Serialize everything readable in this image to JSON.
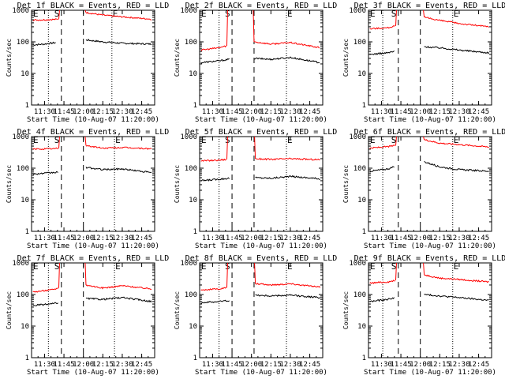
{
  "figure": {
    "ylabel": "Counts/sec",
    "xlabel": "Start Time (10-Aug-07 11:20:00)",
    "xticks": [
      "11:30",
      "11:45",
      "12:00",
      "12:15",
      "12:30",
      "12:45"
    ],
    "yticks": [
      "1",
      "10",
      "100",
      "1000"
    ],
    "markers": {
      "start": "E",
      "middle": "S",
      "end": "E"
    },
    "colors": {
      "events": "#000000",
      "lld": "#ff0000"
    }
  },
  "chart_data": [
    {
      "type": "line",
      "title": "Det 1f BLACK = Events, RED = LLD",
      "xlabel": "Start Time (10-Aug-07 11:20:00)",
      "ylabel": "Counts/sec",
      "yscale": "log",
      "ylim": [
        1,
        1000
      ],
      "xlim_minutes": [
        "11:20",
        "12:55"
      ],
      "series": [
        {
          "name": "Events",
          "color": "black",
          "pre": {
            "x": [
              "11:21",
              "11:30",
              "11:39"
            ],
            "values": [
              80,
              85,
              95
            ]
          },
          "post": {
            "x": [
              "12:02",
              "12:15",
              "12:30",
              "12:53"
            ],
            "values": [
              115,
              100,
              90,
              85
            ]
          }
        },
        {
          "name": "LLD",
          "color": "red",
          "pre": {
            "x": [
              "11:21",
              "11:30",
              "11:41"
            ],
            "values": [
              490,
              500,
              520
            ]
          },
          "post": {
            "x": [
              "12:02",
              "12:15",
              "12:30",
              "12:53"
            ],
            "values": [
              850,
              700,
              620,
              520
            ]
          }
        }
      ],
      "vlines": {
        "dotted": [
          "11:33",
          "12:22"
        ],
        "dashed": [
          "11:43",
          "12:00"
        ]
      }
    },
    {
      "type": "line",
      "title": "Det 2f BLACK = Events, RED = LLD",
      "xlabel": "Start Time (10-Aug-07 11:20:00)",
      "ylabel": "Counts/sec",
      "yscale": "log",
      "ylim": [
        1,
        1000
      ],
      "series": [
        {
          "name": "Events",
          "color": "black",
          "pre": {
            "x": [
              "11:21",
              "11:35",
              "11:43"
            ],
            "values": [
              22,
              25,
              28
            ]
          },
          "post": {
            "x": [
              "12:02",
              "12:15",
              "12:30",
              "12:53"
            ],
            "values": [
              30,
              28,
              32,
              22
            ]
          }
        },
        {
          "name": "LLD",
          "color": "red",
          "pre": {
            "x": [
              "11:21",
              "11:35",
              "11:41"
            ],
            "values": [
              55,
              65,
              75
            ]
          },
          "post": {
            "x": [
              "12:02",
              "12:15",
              "12:30",
              "12:53"
            ],
            "values": [
              100,
              85,
              95,
              65
            ]
          }
        }
      ],
      "vlines": {
        "dotted": [
          "11:35",
          "12:27"
        ],
        "dashed": [
          "11:45",
          "12:02"
        ]
      }
    },
    {
      "type": "line",
      "title": "Det 3f BLACK = Events, RED = LLD",
      "xlabel": "Start Time (10-Aug-07 11:20:00)",
      "ylabel": "Counts/sec",
      "yscale": "log",
      "ylim": [
        1,
        1000
      ],
      "series": [
        {
          "name": "Events",
          "color": "black",
          "pre": {
            "x": [
              "11:21",
              "11:35",
              "11:40"
            ],
            "values": [
              40,
              45,
              50
            ]
          },
          "post": {
            "x": [
              "12:03",
              "12:15",
              "12:30",
              "12:53"
            ],
            "values": [
              70,
              65,
              55,
              45
            ]
          }
        },
        {
          "name": "LLD",
          "color": "red",
          "pre": {
            "x": [
              "11:21",
              "11:35",
              "11:41"
            ],
            "values": [
              260,
              280,
              320
            ]
          },
          "post": {
            "x": [
              "12:03",
              "12:15",
              "12:30",
              "12:53"
            ],
            "values": [
              600,
              480,
              380,
              300
            ]
          }
        }
      ],
      "vlines": {
        "dotted": [
          "11:31",
          "12:25"
        ],
        "dashed": [
          "11:43",
          "12:00"
        ]
      }
    },
    {
      "type": "line",
      "title": "Det 4f BLACK = Events, RED = LLD",
      "xlabel": "Start Time (10-Aug-07 11:20:00)",
      "ylabel": "Counts/sec",
      "yscale": "log",
      "ylim": [
        1,
        1000
      ],
      "series": [
        {
          "name": "Events",
          "color": "black",
          "pre": {
            "x": [
              "11:21",
              "11:33",
              "11:41"
            ],
            "values": [
              65,
              70,
              75
            ]
          },
          "post": {
            "x": [
              "12:02",
              "12:15",
              "12:30",
              "12:53"
            ],
            "values": [
              105,
              90,
              95,
              72
            ]
          }
        },
        {
          "name": "LLD",
          "color": "red",
          "pre": {
            "x": [
              "11:21",
              "11:33",
              "11:41"
            ],
            "values": [
              400,
              410,
              420
            ]
          },
          "post": {
            "x": [
              "12:02",
              "12:15",
              "12:30",
              "12:53"
            ],
            "values": [
              520,
              430,
              450,
              410
            ]
          }
        }
      ],
      "vlines": {
        "dotted": [
          "11:33",
          "12:24"
        ],
        "dashed": [
          "11:43",
          "12:00"
        ]
      }
    },
    {
      "type": "line",
      "title": "Det 5f BLACK = Events, RED = LLD",
      "xlabel": "Start Time (10-Aug-07 11:20:00)",
      "ylabel": "Counts/sec",
      "yscale": "log",
      "ylim": [
        1,
        1000
      ],
      "series": [
        {
          "name": "Events",
          "color": "black",
          "pre": {
            "x": [
              "11:21",
              "11:35",
              "11:43"
            ],
            "values": [
              40,
              45,
              48
            ]
          },
          "post": {
            "x": [
              "12:03",
              "12:15",
              "12:30",
              "12:53"
            ],
            "values": [
              50,
              48,
              55,
              46
            ]
          }
        },
        {
          "name": "LLD",
          "color": "red",
          "pre": {
            "x": [
              "11:21",
              "11:35",
              "11:41"
            ],
            "values": [
              170,
              180,
              190
            ]
          },
          "post": {
            "x": [
              "12:03",
              "12:15",
              "12:30",
              "12:53"
            ],
            "values": [
              200,
              190,
              200,
              185
            ]
          }
        }
      ],
      "vlines": {
        "dotted": [
          "11:35",
          "12:27"
        ],
        "dashed": [
          "11:45",
          "12:02"
        ]
      }
    },
    {
      "type": "line",
      "title": "Det 6f BLACK = Events, RED = LLD",
      "xlabel": "Start Time (10-Aug-07 11:20:00)",
      "ylabel": "Counts/sec",
      "yscale": "log",
      "ylim": [
        1,
        1000
      ],
      "series": [
        {
          "name": "Events",
          "color": "black",
          "pre": {
            "x": [
              "11:21",
              "11:35",
              "11:40"
            ],
            "values": [
              80,
              95,
              110
            ]
          },
          "post": {
            "x": [
              "12:03",
              "12:15",
              "12:30",
              "12:53"
            ],
            "values": [
              160,
              110,
              90,
              80
            ]
          }
        },
        {
          "name": "LLD",
          "color": "red",
          "pre": {
            "x": [
              "11:21",
              "11:35",
              "11:41"
            ],
            "values": [
              430,
              480,
              520
            ]
          },
          "post": {
            "x": [
              "12:03",
              "12:15",
              "12:30",
              "12:53"
            ],
            "values": [
              800,
              620,
              560,
              470
            ]
          }
        }
      ],
      "vlines": {
        "dotted": [
          "11:31",
          "12:25"
        ],
        "dashed": [
          "11:43",
          "12:00"
        ]
      }
    },
    {
      "type": "line",
      "title": "Det 7f BLACK = Events, RED = LLD",
      "xlabel": "Start Time (10-Aug-07 11:20:00)",
      "ylabel": "Counts/sec",
      "yscale": "log",
      "ylim": [
        1,
        1000
      ],
      "series": [
        {
          "name": "Events",
          "color": "black",
          "pre": {
            "x": [
              "11:21",
              "11:35",
              "11:41"
            ],
            "values": [
              45,
              50,
              55
            ]
          },
          "post": {
            "x": [
              "12:02",
              "12:15",
              "12:30",
              "12:53"
            ],
            "values": [
              75,
              70,
              80,
              60
            ]
          }
        },
        {
          "name": "LLD",
          "color": "red",
          "pre": {
            "x": [
              "11:21",
              "11:35",
              "11:41"
            ],
            "values": [
              120,
              140,
              160
            ]
          },
          "post": {
            "x": [
              "12:02",
              "12:15",
              "12:30",
              "12:53"
            ],
            "values": [
              200,
              160,
              190,
              150
            ]
          }
        }
      ],
      "vlines": {
        "dotted": [
          "11:33",
          "12:24"
        ],
        "dashed": [
          "11:43",
          "12:00"
        ]
      }
    },
    {
      "type": "line",
      "title": "Det 8f BLACK = Events, RED = LLD",
      "xlabel": "Start Time (10-Aug-07 11:20:00)",
      "ylabel": "Counts/sec",
      "yscale": "log",
      "ylim": [
        1,
        1000
      ],
      "series": [
        {
          "name": "Events",
          "color": "black",
          "pre": {
            "x": [
              "11:21",
              "11:35",
              "11:43"
            ],
            "values": [
              55,
              60,
              65
            ]
          },
          "post": {
            "x": [
              "12:03",
              "12:15",
              "12:30",
              "12:53"
            ],
            "values": [
              95,
              90,
              95,
              80
            ]
          }
        },
        {
          "name": "LLD",
          "color": "red",
          "pre": {
            "x": [
              "11:21",
              "11:35",
              "11:41"
            ],
            "values": [
              140,
              150,
              165
            ]
          },
          "post": {
            "x": [
              "12:03",
              "12:15",
              "12:30",
              "12:53"
            ],
            "values": [
              220,
              200,
              220,
              170
            ]
          }
        }
      ],
      "vlines": {
        "dotted": [
          "11:35",
          "12:27"
        ],
        "dashed": [
          "11:45",
          "12:02"
        ]
      }
    },
    {
      "type": "line",
      "title": "Det 9f BLACK = Events, RED = LLD",
      "xlabel": "Start Time (10-Aug-07 11:20:00)",
      "ylabel": "Counts/sec",
      "yscale": "log",
      "ylim": [
        1,
        1000
      ],
      "series": [
        {
          "name": "Events",
          "color": "black",
          "pre": {
            "x": [
              "11:21",
              "11:35",
              "11:40"
            ],
            "values": [
              60,
              70,
              80
            ]
          },
          "post": {
            "x": [
              "12:03",
              "12:15",
              "12:30",
              "12:53"
            ],
            "values": [
              100,
              90,
              80,
              65
            ]
          }
        },
        {
          "name": "LLD",
          "color": "red",
          "pre": {
            "x": [
              "11:21",
              "11:35",
              "11:41"
            ],
            "values": [
              230,
              250,
              280
            ]
          },
          "post": {
            "x": [
              "12:03",
              "12:15",
              "12:30",
              "12:53"
            ],
            "values": [
              420,
              330,
              300,
              250
            ]
          }
        }
      ],
      "vlines": {
        "dotted": [
          "11:31",
          "12:25"
        ],
        "dashed": [
          "11:43",
          "12:00"
        ]
      }
    }
  ]
}
